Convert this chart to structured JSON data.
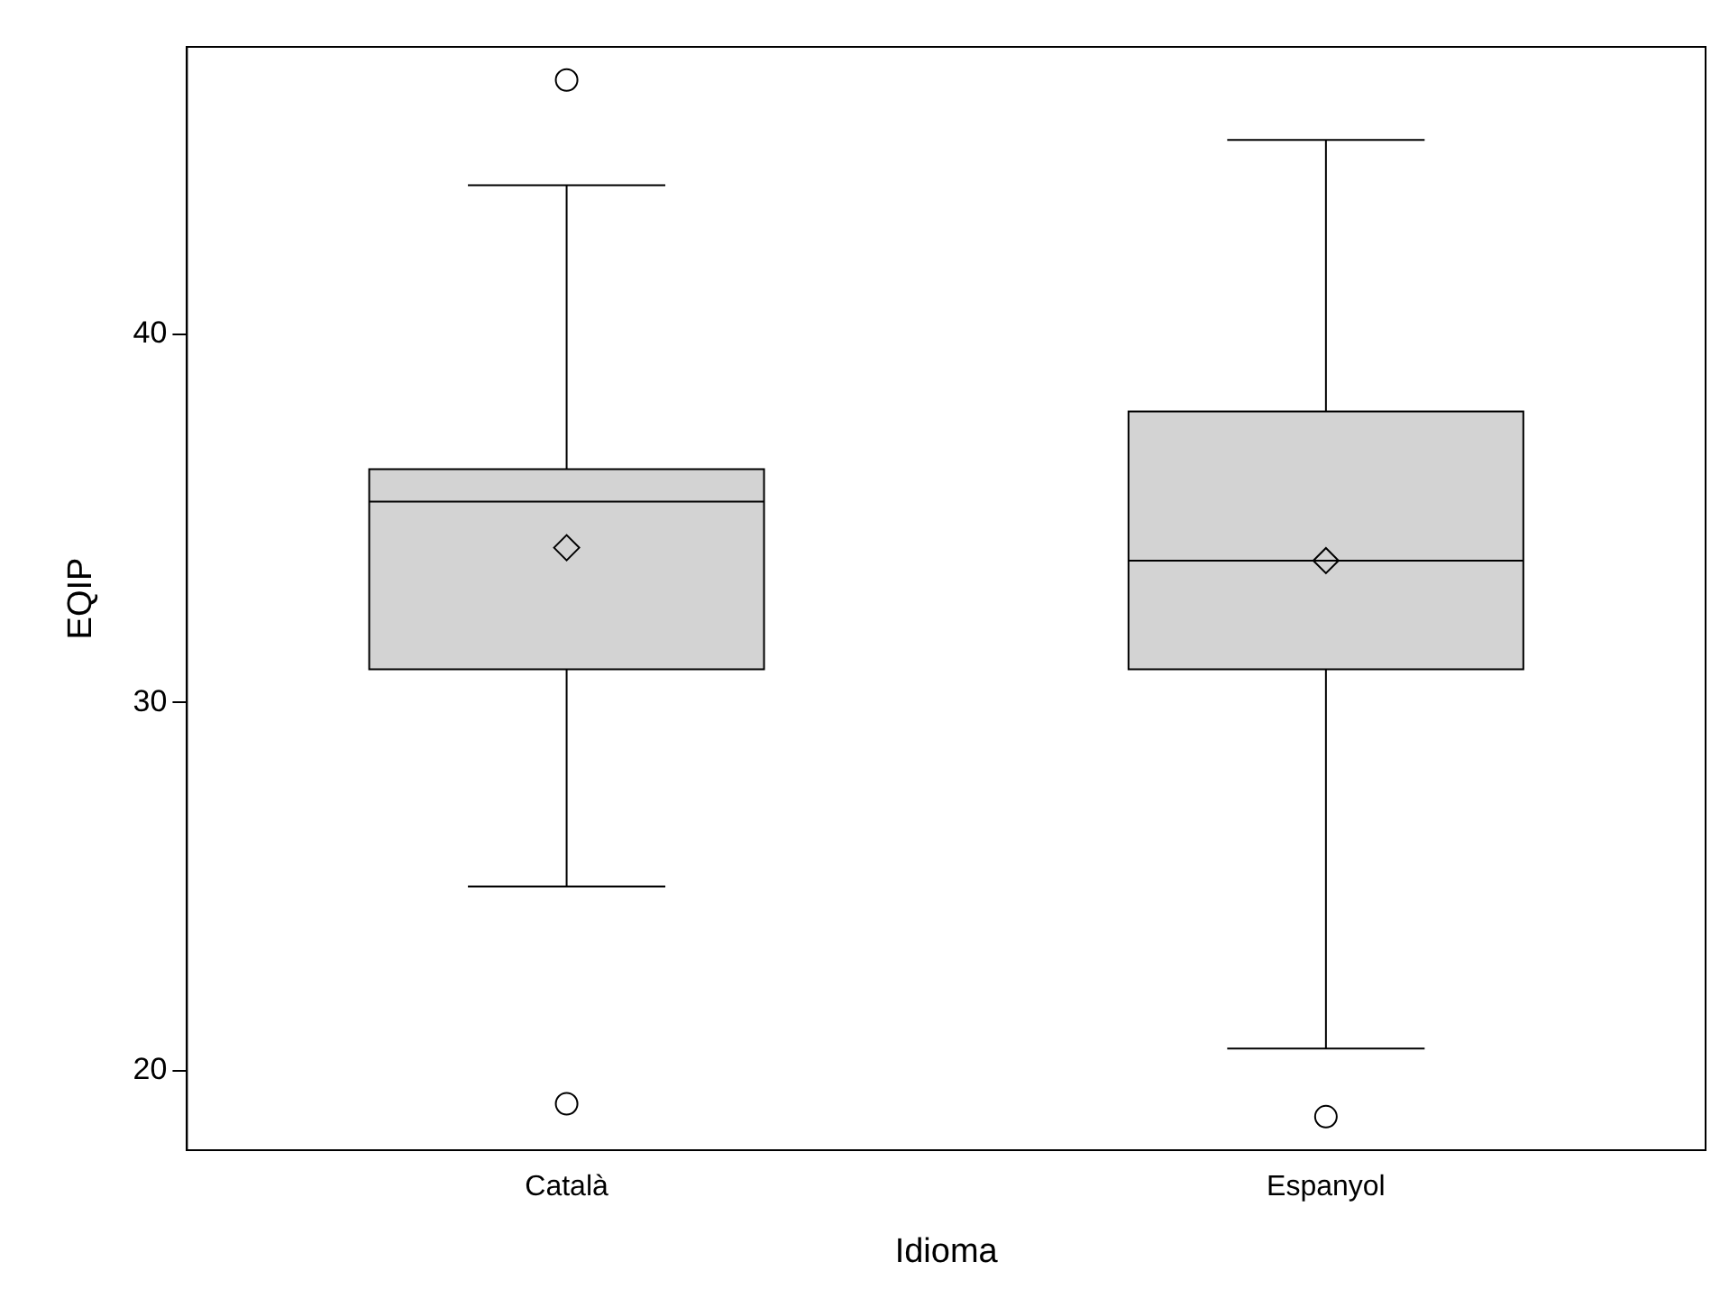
{
  "chart_data": {
    "type": "box",
    "xlabel": "Idioma",
    "ylabel": "EQIP",
    "categories": [
      "Català",
      "Espanyol"
    ],
    "color": "#d3d3d3",
    "boxes": [
      {
        "low": 25.0,
        "q1": 30.9,
        "median": 35.45,
        "q3": 36.33,
        "high": 44.04,
        "mean": 34.2,
        "outliers": [
          46.9,
          19.1
        ]
      },
      {
        "low": 20.6,
        "q1": 30.9,
        "median": 33.85,
        "q3": 37.9,
        "high": 45.27,
        "mean": 33.85,
        "outliers": [
          18.75
        ]
      }
    ],
    "ylim": [
      17.84,
      47.8
    ],
    "yticks": [
      20,
      30,
      40
    ],
    "grid": false,
    "legend": false
  }
}
